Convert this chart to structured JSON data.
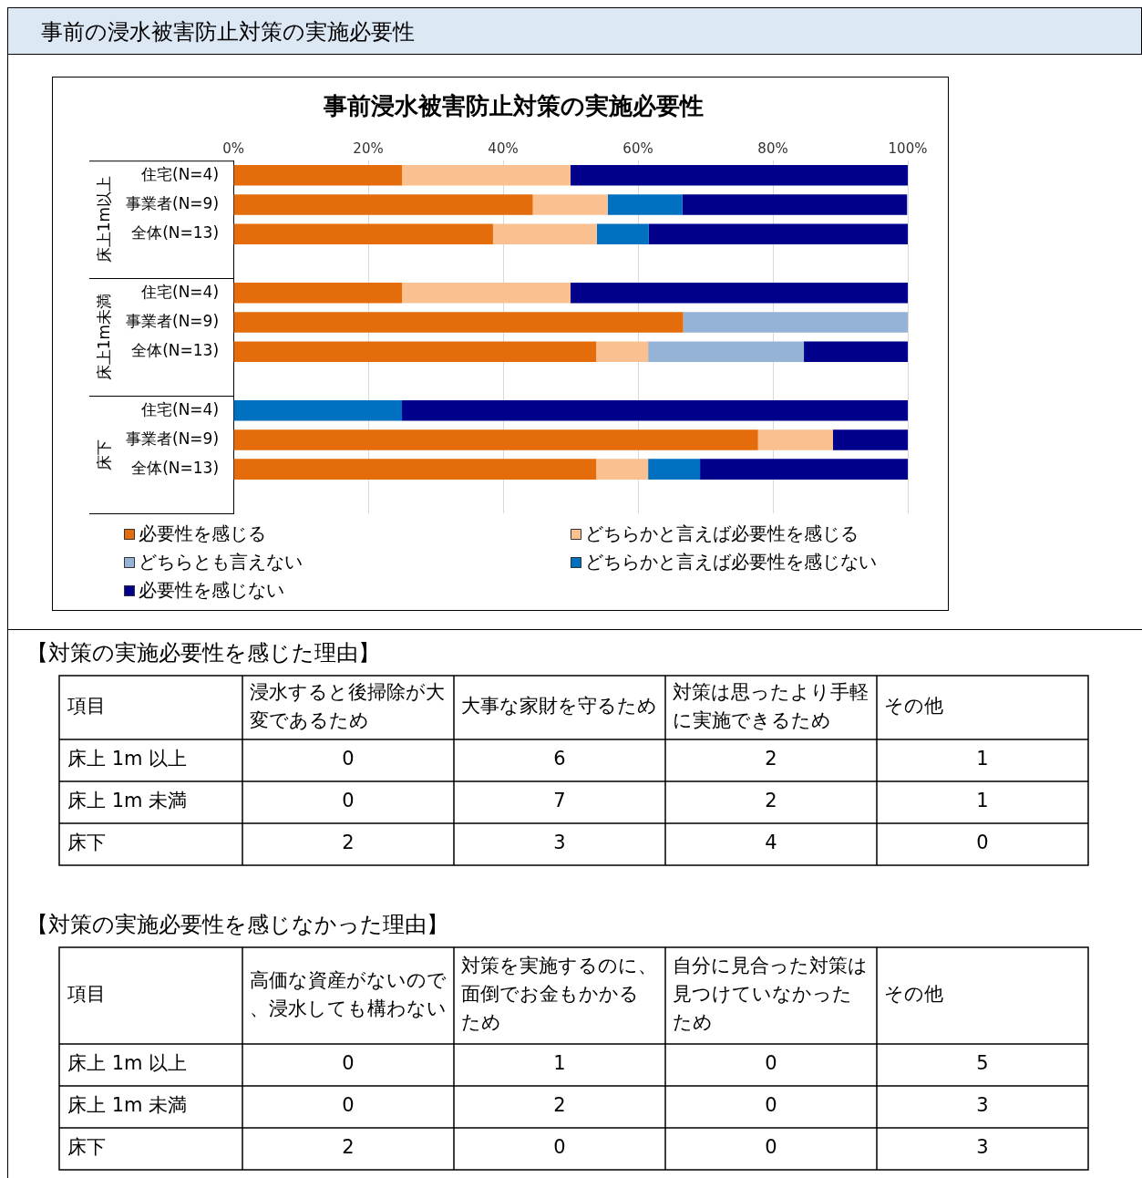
{
  "chart_data": [
    {
      "type": "bar",
      "title": "事前浸水被害防止対策の実施必要性",
      "orientation": "horizontal",
      "stacked": true,
      "legend": "bottom",
      "grid": "x",
      "annotations": [
        "事前の浸水被害防止対策の実施必要性",
        "床上1m以上",
        "床上1m未満",
        "床下"
      ],
      "categories": [
        "住宅(N=4)",
        "事業者(N=9)",
        "全体(N=13)",
        null,
        "住宅(N=4)",
        "事業者(N=9)",
        "全体(N=13)",
        null,
        "住宅(N=4)",
        "事業者(N=9)",
        "全体(N=13)",
        null
      ],
      "xlim": [
        0,
        100
      ],
      "xticks": [
        {
          "value": 0,
          "label": "0%"
        },
        {
          "value": 20,
          "label": "20%"
        },
        {
          "value": 40,
          "label": "40%"
        },
        {
          "value": 60,
          "label": "60%"
        },
        {
          "value": 80,
          "label": "80%"
        },
        {
          "value": 100,
          "label": "100%"
        }
      ],
      "series": [
        {
          "name": "必要性を感じる",
          "color": "#e46c0a",
          "values": [
            25,
            44.4,
            38.5,
            null,
            25,
            66.7,
            53.8,
            null,
            0,
            77.8,
            53.8,
            null
          ]
        },
        {
          "name": "どちらかと言えば必要性を感じる",
          "color": "#fac090",
          "values": [
            25,
            11.1,
            15.4,
            null,
            25,
            0,
            7.7,
            null,
            0,
            11.1,
            7.7,
            null
          ]
        },
        {
          "name": "どちらとも言えない",
          "color": "#95b3d7",
          "values": [
            0,
            0,
            0,
            null,
            0,
            33.3,
            23.1,
            null,
            0,
            0,
            0,
            null
          ]
        },
        {
          "name": "どちらかと言えば必要性を感じない",
          "color": "#0070c0",
          "values": [
            0,
            11.1,
            7.7,
            null,
            0,
            0,
            0,
            null,
            25,
            0,
            7.7,
            null
          ]
        },
        {
          "name": "必要性を感じない",
          "color": "#00008b",
          "values": [
            50,
            33.3,
            38.5,
            null,
            50,
            0,
            15.4,
            null,
            75,
            11.1,
            30.8,
            null
          ]
        }
      ]
    },
    {
      "type": "heatmap",
      "title": "【対策の実施必要性を感じた理由】",
      "ylabel": "項目",
      "data_labels": true,
      "categories": [
        "浸水すると後掃除が大変であるため",
        "大事な家財を守るため",
        "対策は思ったより手軽に実施できるため",
        "その他"
      ],
      "y_categories": [
        "床上 1m 以上",
        "床上 1m 未満",
        "床下"
      ],
      "cells": [
        [
          0,
          6,
          2,
          1
        ],
        [
          0,
          7,
          2,
          1
        ],
        [
          2,
          3,
          4,
          0
        ]
      ]
    },
    {
      "type": "heatmap",
      "title": "【対策の実施必要性を感じなかった理由】",
      "ylabel": "項目",
      "data_labels": true,
      "categories": [
        "高価な資産がないので、浸水しても構わない",
        "対策を実施するのに、面倒でお金もかかるため",
        "自分に見合った対策は見つけていなかったため",
        "その他"
      ],
      "y_categories": [
        "床上 1m 以上",
        "床上 1m 未満",
        "床下"
      ],
      "cells": [
        [
          0,
          1,
          0,
          5
        ],
        [
          0,
          2,
          0,
          3
        ],
        [
          2,
          0,
          0,
          3
        ]
      ]
    }
  ]
}
